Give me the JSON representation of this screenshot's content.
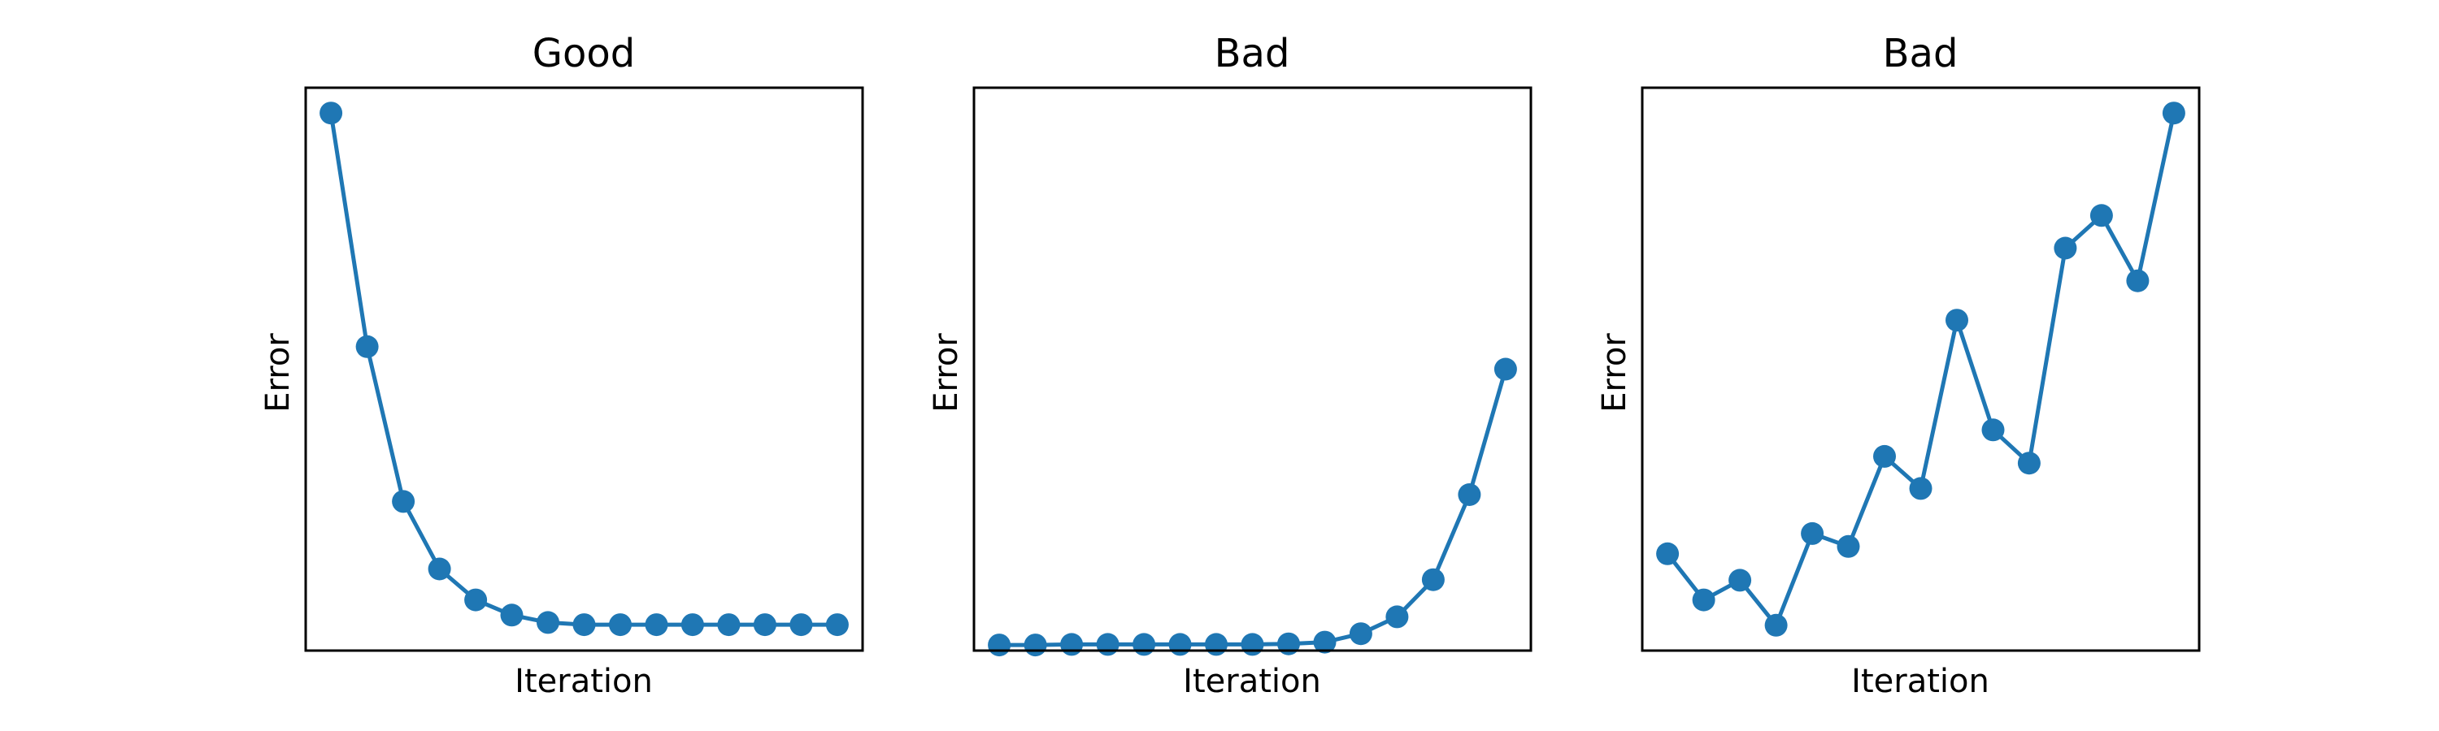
{
  "chart_data": [
    {
      "type": "line",
      "title": "Good",
      "xlabel": "Iteration",
      "ylabel": "Error",
      "xlim": [
        -0.7,
        14.7
      ],
      "ylim": [
        0,
        1.0
      ],
      "xticks": "hidden",
      "yticks": "hidden",
      "grid": false,
      "series": [
        {
          "color": "#1f77b4",
          "marker": "circle",
          "x": [
            0,
            1,
            2,
            3,
            4,
            5,
            6,
            7,
            8,
            9,
            10,
            11,
            12,
            13,
            14
          ],
          "y": [
            0.955,
            0.54,
            0.265,
            0.145,
            0.09,
            0.063,
            0.05,
            0.046,
            0.046,
            0.046,
            0.046,
            0.046,
            0.046,
            0.046,
            0.046
          ]
        }
      ]
    },
    {
      "type": "line",
      "title": "Bad",
      "xlabel": "Iteration",
      "ylabel": "Error",
      "xlim": [
        -0.7,
        14.7
      ],
      "ylim": [
        0,
        1.0
      ],
      "xticks": "hidden",
      "yticks": "hidden",
      "grid": false,
      "series": [
        {
          "color": "#1f77b4",
          "marker": "circle",
          "x": [
            0,
            1,
            2,
            3,
            4,
            5,
            6,
            7,
            8,
            9,
            10,
            11,
            12,
            13,
            14
          ],
          "y": [
            0.01,
            0.01,
            0.011,
            0.011,
            0.011,
            0.011,
            0.011,
            0.011,
            0.012,
            0.015,
            0.03,
            0.06,
            0.126,
            0.277,
            0.5
          ]
        }
      ]
    },
    {
      "type": "line",
      "title": "Bad",
      "xlabel": "Iteration",
      "ylabel": "Error",
      "xlim": [
        -0.7,
        14.7
      ],
      "ylim": [
        0,
        1.0
      ],
      "xticks": "hidden",
      "yticks": "hidden",
      "grid": false,
      "series": [
        {
          "color": "#1f77b4",
          "marker": "circle",
          "x": [
            0,
            1,
            2,
            3,
            4,
            5,
            6,
            7,
            8,
            9,
            10,
            11,
            12,
            13,
            14
          ],
          "y": [
            0.172,
            0.09,
            0.125,
            0.045,
            0.208,
            0.185,
            0.345,
            0.288,
            0.587,
            0.392,
            0.333,
            0.715,
            0.773,
            0.657,
            0.955
          ]
        }
      ]
    }
  ]
}
